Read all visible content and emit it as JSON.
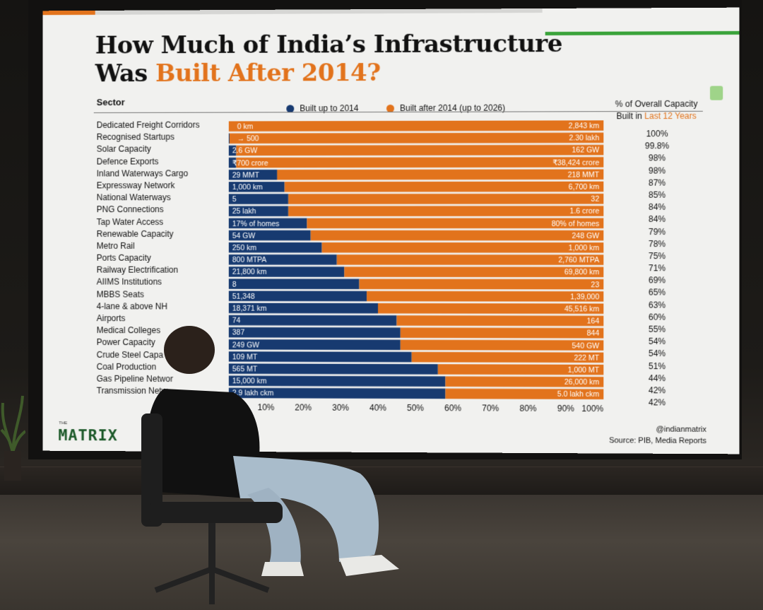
{
  "title": {
    "line1": "How Much of India’s Infrastructure",
    "line2_prefix": "Was ",
    "line2_accent": "Built After 2014?"
  },
  "sector_header": "Sector",
  "legend": {
    "before": "Built up to 2014",
    "after": "Built after 2014 (up to 2026)"
  },
  "pct_header": {
    "line1": "% of Overall Capacity",
    "line2_prefix": "Built in ",
    "line2_accent": "Last 12 Years"
  },
  "footer": {
    "logo_small": "THE",
    "logo": "MATRIX",
    "handle": "@indianmatrix",
    "source": "Source: PIB, Media Reports"
  },
  "colors": {
    "before": "#173a70",
    "after": "#e2731c",
    "background": "#f1f1ef"
  },
  "chart_data": {
    "type": "bar",
    "orientation": "horizontal",
    "stacked": true,
    "xlim": [
      0,
      100
    ],
    "xticks": [
      "10%",
      "20%",
      "30%",
      "40%",
      "50%",
      "60%",
      "70%",
      "80%",
      "90%",
      "100%"
    ],
    "series": [
      {
        "name": "Built up to 2014",
        "color": "#173a70"
      },
      {
        "name": "Built after 2014 (up to 2026)",
        "color": "#e2731c"
      }
    ],
    "rows": [
      {
        "sector": "Dedicated Freight Corridors",
        "before": "0 km",
        "after": "2,843 km",
        "pct": "100%",
        "share": 100
      },
      {
        "sector": "Recognised Startups",
        "before": "500",
        "after": "2.30 lakh",
        "pct": "99.8%",
        "share": 99.8
      },
      {
        "sector": "Solar Capacity",
        "before": "2.6 GW",
        "after": "162 GW",
        "pct": "98%",
        "share": 98
      },
      {
        "sector": "Defence Exports",
        "before": "₹700 crore",
        "after": "₹38,424 crore",
        "pct": "98%",
        "share": 98
      },
      {
        "sector": "Inland Waterways Cargo",
        "before": "29 MMT",
        "after": "218 MMT",
        "pct": "87%",
        "share": 87
      },
      {
        "sector": "Expressway Network",
        "before": "1,000 km",
        "after": "6,700 km",
        "pct": "85%",
        "share": 85
      },
      {
        "sector": "National Waterways",
        "before": "5",
        "after": "32",
        "pct": "84%",
        "share": 84
      },
      {
        "sector": "PNG Connections",
        "before": "25 lakh",
        "after": "1.6 crore",
        "pct": "84%",
        "share": 84
      },
      {
        "sector": "Tap Water Access",
        "before": "17% of homes",
        "after": "80% of homes",
        "pct": "79%",
        "share": 79
      },
      {
        "sector": "Renewable Capacity",
        "before": "54 GW",
        "after": "248 GW",
        "pct": "78%",
        "share": 78
      },
      {
        "sector": "Metro Rail",
        "before": "250 km",
        "after": "1,000 km",
        "pct": "75%",
        "share": 75
      },
      {
        "sector": "Ports Capacity",
        "before": "800 MTPA",
        "after": "2,760 MTPA",
        "pct": "71%",
        "share": 71
      },
      {
        "sector": "Railway Electrification",
        "before": "21,800 km",
        "after": "69,800 km",
        "pct": "69%",
        "share": 69
      },
      {
        "sector": "AIIMS Institutions",
        "before": "8",
        "after": "23",
        "pct": "65%",
        "share": 65
      },
      {
        "sector": "MBBS Seats",
        "before": "51,348",
        "after": "1,39,000",
        "pct": "63%",
        "share": 63
      },
      {
        "sector": "4-lane & above NH",
        "before": "18,371 km",
        "after": "45,516 km",
        "pct": "60%",
        "share": 60
      },
      {
        "sector": "Airports",
        "before": "74",
        "after": "164",
        "pct": "55%",
        "share": 55
      },
      {
        "sector": "Medical Colleges",
        "before": "387",
        "after": "844",
        "pct": "54%",
        "share": 54
      },
      {
        "sector": "Power Capacity",
        "before": "249 GW",
        "after": "540 GW",
        "pct": "54%",
        "share": 54
      },
      {
        "sector": "Crude Steel Capa",
        "before": "109 MT",
        "after": "222 MT",
        "pct": "51%",
        "share": 51
      },
      {
        "sector": "Coal Production",
        "before": "565 MT",
        "after": "1,000 MT",
        "pct": "44%",
        "share": 44
      },
      {
        "sector": "Gas Pipeline Networ",
        "before": "15,000 km",
        "after": "26,000 km",
        "pct": "42%",
        "share": 42
      },
      {
        "sector": "Transmission Netw",
        "before": "2.9 lakh ckm",
        "after": "5.0 lakh ckm",
        "pct": "42%",
        "share": 42
      }
    ]
  }
}
